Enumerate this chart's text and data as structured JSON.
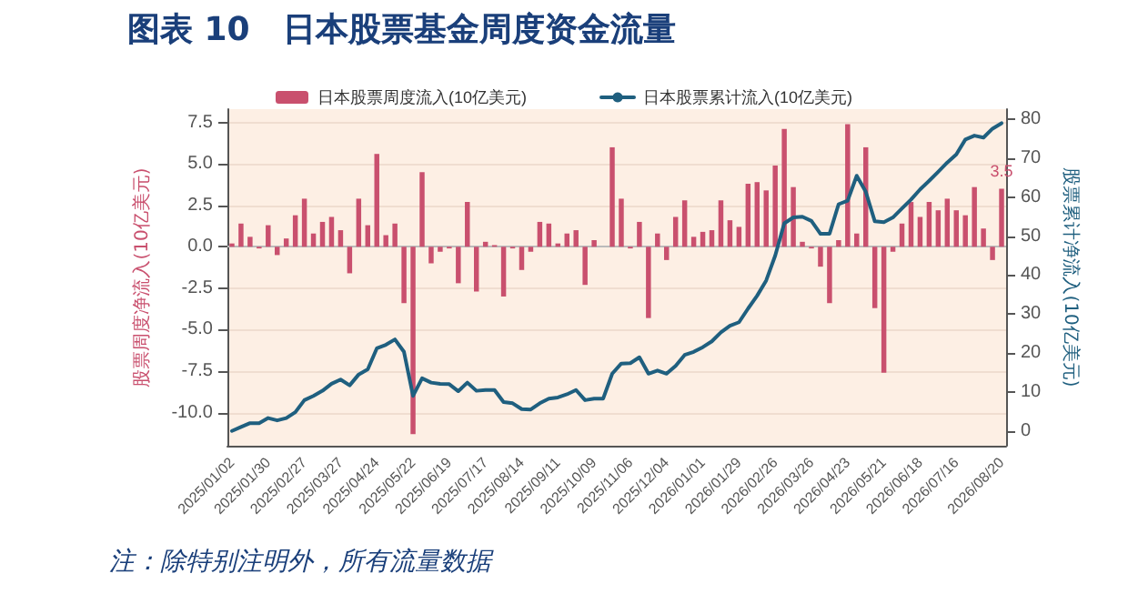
{
  "chart_data": {
    "type": "bar",
    "title": "图表 10　日本股票基金周度资金流量",
    "ylabel": "股票周度净流入(10亿美元)",
    "y2label": "股票累计净流入(10亿美元)",
    "annotations": [
      "注：除特别注明外，所有流量数据"
    ],
    "categories": [
      "2025/01/02",
      null,
      null,
      null,
      "2025/01/30",
      null,
      null,
      null,
      "2025/02/27",
      null,
      null,
      null,
      "2025/03/27",
      null,
      null,
      null,
      "2025/04/24",
      null,
      null,
      null,
      "2025/05/22",
      null,
      null,
      null,
      "2025/06/19",
      null,
      null,
      null,
      "2025/07/17",
      null,
      null,
      null,
      "2025/08/14",
      null,
      null,
      null,
      "2025/09/11",
      null,
      null,
      null,
      "2025/10/09",
      null,
      null,
      null,
      "2025/11/06",
      null,
      null,
      null,
      "2025/12/04",
      null,
      null,
      null,
      "2026/01/01",
      null,
      null,
      null,
      "2026/01/29",
      null,
      null,
      null,
      "2026/02/26",
      null,
      null,
      null,
      "2026/03/26",
      null,
      null,
      null,
      "2026/04/23",
      null,
      null,
      null,
      "2026/05/21",
      null,
      null,
      null,
      "2026/06/18",
      null,
      null,
      null,
      "2026/07/16",
      null,
      null,
      null,
      null,
      "2026/08/20"
    ],
    "series": [
      {
        "name": "日本股票周度流入(10亿美元)",
        "color": "#c9506e",
        "values": [
          0.2,
          1.4,
          0.6,
          -0.1,
          1.3,
          -0.5,
          0.5,
          1.9,
          2.9,
          0.8,
          1.5,
          1.8,
          1.0,
          -1.6,
          2.9,
          1.3,
          5.6,
          0.7,
          1.4,
          -3.4,
          -11.3,
          4.5,
          -1.0,
          -0.3,
          -0.1,
          -2.2,
          2.7,
          -2.7,
          0.3,
          0.1,
          -3.0,
          -0.1,
          -1.4,
          -0.3,
          1.5,
          1.4,
          0.2,
          0.8,
          1.0,
          -2.3,
          0.4,
          0.0,
          6.0,
          2.9,
          -0.1,
          1.5,
          -4.3,
          0.8,
          -0.8,
          1.8,
          2.8,
          0.6,
          0.9,
          1.0,
          2.8,
          1.6,
          1.2,
          3.8,
          3.9,
          3.4,
          4.9,
          7.1,
          3.6,
          0.3,
          -0.1,
          -1.2,
          -3.4,
          0.4,
          7.4,
          0.8,
          6.0,
          -3.7,
          -7.6,
          -0.3,
          1.4,
          2.7,
          1.8,
          2.7,
          2.2,
          2.9,
          2.2,
          1.9,
          3.6,
          1.1,
          -0.8,
          3.5
        ],
        "value_labels": [
          null,
          null,
          null,
          null,
          null,
          null,
          null,
          null,
          null,
          null,
          null,
          null,
          null,
          null,
          null,
          null,
          null,
          null,
          null,
          null,
          null,
          null,
          null,
          null,
          null,
          null,
          null,
          null,
          null,
          null,
          null,
          null,
          null,
          null,
          null,
          null,
          null,
          null,
          null,
          null,
          null,
          null,
          null,
          null,
          null,
          null,
          null,
          null,
          null,
          null,
          null,
          null,
          null,
          null,
          null,
          null,
          null,
          null,
          null,
          null,
          null,
          null,
          null,
          null,
          null,
          null,
          null,
          null,
          null,
          null,
          null,
          null,
          null,
          null,
          null,
          null,
          null,
          null,
          null,
          null,
          null,
          null,
          null,
          null,
          null,
          "3.5"
        ]
      },
      {
        "name": "日本股票累计流入(10亿美元)",
        "type": "line",
        "axis": "y2",
        "color": "#1f5f7f",
        "marker": "none",
        "values": [
          0,
          1,
          2,
          2,
          3.3,
          2.7,
          3.3,
          4.8,
          7.9,
          9,
          10.3,
          12.1,
          13.2,
          11.7,
          14.5,
          15.8,
          21.2,
          22.1,
          23.5,
          20.3,
          9,
          13.5,
          12.4,
          12.1,
          12,
          10.2,
          12.4,
          10.3,
          10.5,
          10.5,
          7.4,
          7.1,
          5.6,
          5.5,
          7.1,
          8.3,
          8.6,
          9.4,
          10.5,
          7.9,
          8.3,
          8.3,
          14.7,
          17.3,
          17.4,
          18.9,
          14.7,
          15.5,
          14.7,
          16.7,
          19.5,
          20.3,
          21.5,
          23,
          25.3,
          27,
          27.9,
          31.4,
          34.7,
          38.6,
          45,
          53.3,
          54.8,
          55,
          53.9,
          50.6,
          50.6,
          58.2,
          59.1,
          65.5,
          61.4,
          53.8,
          53.6,
          54.8,
          57.1,
          59.4,
          62,
          64.2,
          66.5,
          68.9,
          71,
          74.8,
          75.8,
          75.3,
          77.6,
          79
        ]
      }
    ],
    "ylim": [
      -12,
      8.3
    ],
    "yticks": [
      {
        "value": -10,
        "label": "-10.0"
      },
      -7.5,
      {
        "value": -5,
        "label": "-5.0"
      },
      -2.5,
      {
        "value": 0,
        "label": "0.0"
      },
      2.5,
      {
        "value": 5,
        "label": "5.0"
      },
      7.5
    ],
    "y2lim": [
      -3.8,
      82.6
    ],
    "y2ticks": [
      0,
      10,
      20,
      30,
      40,
      50,
      60,
      70,
      80
    ],
    "ref_lines": [
      {
        "axis": "y",
        "value": 0,
        "color": "#bbbbbb"
      }
    ],
    "grid": "y",
    "legend": "top"
  }
}
